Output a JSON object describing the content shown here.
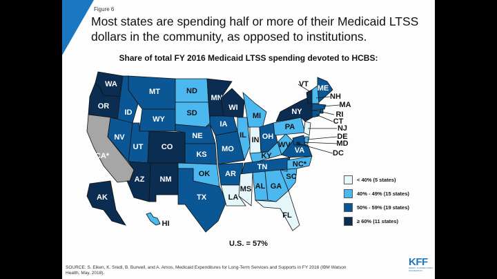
{
  "slide": {
    "figure_label": "Figure 6",
    "title": "Most states are spending half or more of their Medicaid LTSS dollars in the community, as opposed to institutions.",
    "subtitle": "Share of total FY 2016 Medicaid LTSS spending devoted to HCBS:",
    "us_total": "U.S. = 57%",
    "source": "SOURCE: S. Eiken, K. Sredl, B. Burwell, and A. Amos, Medicaid Expenditures for Long-Term Services and Supports in FY 2016 (IBM Watson Health, May, 2018).",
    "logo": {
      "mark": "KFF",
      "sub": "HENRY J KAISER FAMILY FOUNDATION"
    },
    "accent_color": "#1b78c0"
  },
  "legend": [
    {
      "key": "lt40",
      "label": "< 40% (5 states)",
      "color": "#e6f7fb"
    },
    {
      "key": "40to49",
      "label": "40% - 49% (15 states)",
      "color": "#4cb8f0"
    },
    {
      "key": "50to59",
      "label": "50% - 59% (19 states)",
      "color": "#0b5796"
    },
    {
      "key": "ge60",
      "label": "≥ 60% (11 states)",
      "color": "#0b2d52"
    },
    {
      "key": "na",
      "label": "",
      "color": "#a6a6a6"
    }
  ],
  "chart_data": {
    "type": "choropleth",
    "title": "Share of total FY 2016 Medicaid LTSS spending devoted to HCBS:",
    "annotation": "U.S. = 57%",
    "legend_position": "bottom-right",
    "categories": [
      "< 40% (5 states)",
      "40% - 49% (15 states)",
      "50% - 59% (19 states)",
      "≥ 60% (11 states)"
    ],
    "states": {
      "WA": "ge60",
      "OR": "ge60",
      "CA*": "na",
      "AK": "ge60",
      "HI": "40to49",
      "ID": "50to59",
      "NV": "50to59",
      "MT": "50to59",
      "WY": "50to59",
      "UT": "50to59",
      "CO": "ge60",
      "AZ": "ge60",
      "NM": "ge60",
      "ND": "40to49",
      "SD": "40to49",
      "NE": "50to59",
      "KS": "50to59",
      "OK": "40to49",
      "TX": "50to59",
      "MN": "ge60",
      "IA": "50to59",
      "MO": "50to59",
      "AR": "50to59",
      "LA": "lt40",
      "WI": "ge60",
      "IL": "40to49",
      "MI": "40to49",
      "IN": "lt40",
      "OH": "50to59",
      "KY": "40to49",
      "TN": "50to59",
      "MS": "lt40",
      "AL": "40to49",
      "GA": "40to49",
      "FL": "lt40",
      "SC": "40to49",
      "NC*": "40to49",
      "VA": "50to59",
      "WV": "40to49",
      "PA": "40to49",
      "NY": "ge60",
      "VT": "ge60",
      "NH": "40to49",
      "ME": "50to59",
      "MA": "50to59",
      "RI": "50to59",
      "CT": "50to59",
      "NJ": "lt40",
      "DE": "40to49",
      "MD": "50to59",
      "DC": "ge60"
    }
  }
}
